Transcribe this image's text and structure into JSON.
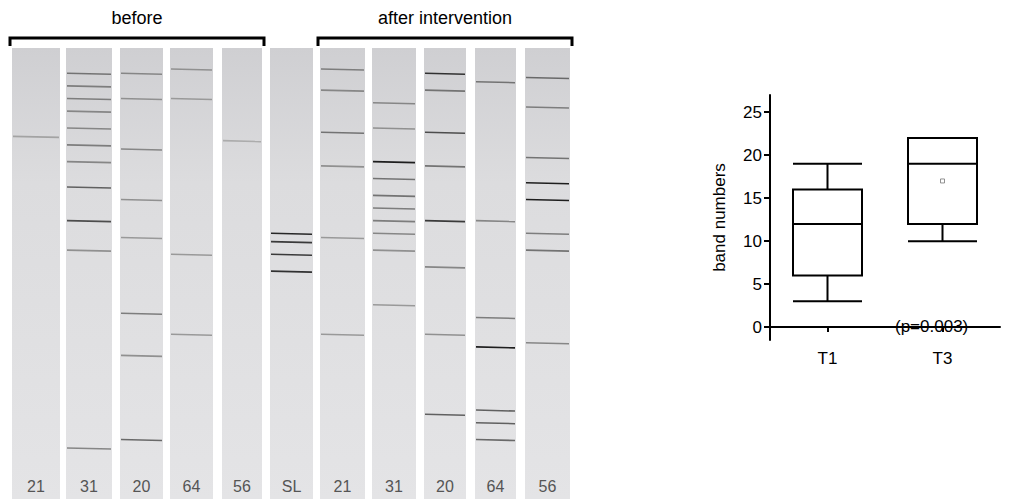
{
  "gel": {
    "groups": [
      "before",
      "after intervention"
    ],
    "lanes": [
      {
        "label": "21",
        "group": "before"
      },
      {
        "label": "31",
        "group": "before"
      },
      {
        "label": "20",
        "group": "before"
      },
      {
        "label": "64",
        "group": "before"
      },
      {
        "label": "56",
        "group": "before"
      },
      {
        "label": "SL"
      },
      {
        "label": "21",
        "group": "after intervention"
      },
      {
        "label": "31",
        "group": "after intervention"
      },
      {
        "label": "20",
        "group": "after intervention"
      },
      {
        "label": "64",
        "group": "after intervention"
      },
      {
        "label": "56",
        "group": "after intervention"
      }
    ]
  },
  "chart_data": {
    "type": "boxplot",
    "categories": [
      "T1",
      "T3"
    ],
    "values": [
      [
        3,
        6,
        12,
        16,
        19
      ],
      [
        10,
        12,
        19,
        22,
        22
      ]
    ],
    "means": [
      null,
      17
    ],
    "color": "#000000",
    "ylabel": "band numbers",
    "ylim": [
      -1.5,
      27
    ],
    "yticks": [
      0,
      5,
      10,
      15,
      20,
      25
    ],
    "grid": false,
    "annotations": [
      {
        "text": "(p=0.003)"
      }
    ]
  }
}
